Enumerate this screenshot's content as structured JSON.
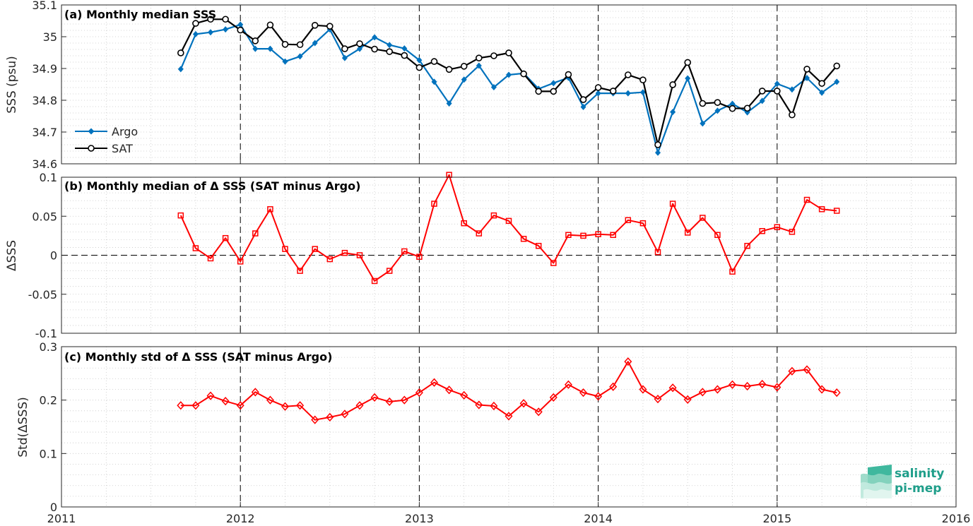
{
  "colors": {
    "argo": "#0072BD",
    "sat": "#000000",
    "delta": "#FF0000",
    "axes": "#262626",
    "grid": "#C8C8C8",
    "logo": "#1F9E8A"
  },
  "icons": {
    "logo": "salinity-pi-mep-logo"
  },
  "logo": {
    "line1": "salinity",
    "line2": "pi-mep"
  },
  "chart_data": [
    {
      "type": "line",
      "title": "(a) Monthly median SSS",
      "xlabel": "",
      "ylabel": "SSS (psu)",
      "xlim": [
        2011,
        2016
      ],
      "ylim": [
        34.6,
        35.1
      ],
      "yticks": [
        "34.6",
        "34.7",
        "34.8",
        "34.9",
        "35",
        "35.1"
      ],
      "xticks": [
        "2011",
        "2012",
        "2013",
        "2014",
        "2015",
        "2016"
      ],
      "grid": true,
      "minor_grid": true,
      "legend": "bottom-left",
      "x": [
        "2011-09",
        "2011-10",
        "2011-11",
        "2011-12",
        "2012-01",
        "2012-02",
        "2012-03",
        "2012-04",
        "2012-05",
        "2012-06",
        "2012-07",
        "2012-08",
        "2012-09",
        "2012-10",
        "2012-11",
        "2012-12",
        "2013-01",
        "2013-02",
        "2013-03",
        "2013-04",
        "2013-05",
        "2013-06",
        "2013-07",
        "2013-08",
        "2013-09",
        "2013-10",
        "2013-11",
        "2013-12",
        "2014-01",
        "2014-02",
        "2014-03",
        "2014-04",
        "2014-05",
        "2014-06",
        "2014-07",
        "2014-08",
        "2014-09",
        "2014-10",
        "2014-11",
        "2014-12",
        "2015-01",
        "2015-02",
        "2015-03",
        "2015-04",
        "2015-05"
      ],
      "series": [
        {
          "name": "Argo",
          "marker": "diamond-filled",
          "values": [
            34.898,
            35.008,
            35.014,
            35.023,
            35.038,
            34.962,
            34.962,
            34.922,
            34.938,
            34.98,
            35.023,
            34.933,
            34.962,
            34.998,
            34.974,
            34.963,
            34.926,
            34.858,
            34.79,
            34.865,
            34.909,
            34.841,
            34.88,
            34.885,
            34.836,
            34.854,
            34.871,
            34.779,
            34.822,
            34.822,
            34.822,
            34.825,
            34.635,
            34.763,
            34.869,
            34.727,
            34.767,
            34.789,
            34.762,
            34.798,
            34.852,
            34.834,
            34.87,
            34.824,
            34.858
          ]
        },
        {
          "name": "SAT",
          "marker": "circle-open",
          "values": [
            34.949,
            35.042,
            35.055,
            35.055,
            35.021,
            34.987,
            35.037,
            34.976,
            34.975,
            35.036,
            35.033,
            34.962,
            34.978,
            34.961,
            34.953,
            34.941,
            34.903,
            34.922,
            34.897,
            34.907,
            34.933,
            34.94,
            34.949,
            34.883,
            34.828,
            34.828,
            34.881,
            34.802,
            34.84,
            34.829,
            34.88,
            34.864,
            34.66,
            34.849,
            34.919,
            34.79,
            34.793,
            34.774,
            34.775,
            34.829,
            34.829,
            34.754,
            34.898,
            34.853,
            34.908
          ]
        }
      ]
    },
    {
      "type": "line",
      "title": "(b) Monthly median of Δ SSS (SAT minus Argo)",
      "xlabel": "",
      "ylabel": "ΔSSS",
      "xlim": [
        2011,
        2016
      ],
      "ylim": [
        -0.1,
        0.1
      ],
      "yticks": [
        "-0.1",
        "-0.05",
        "0",
        "0.05",
        "0.1"
      ],
      "grid": true,
      "minor_grid": true,
      "zero_line": "dashed",
      "x": [
        "2011-09",
        "2011-10",
        "2011-11",
        "2011-12",
        "2012-01",
        "2012-02",
        "2012-03",
        "2012-04",
        "2012-05",
        "2012-06",
        "2012-07",
        "2012-08",
        "2012-09",
        "2012-10",
        "2012-11",
        "2012-12",
        "2013-01",
        "2013-02",
        "2013-03",
        "2013-04",
        "2013-05",
        "2013-06",
        "2013-07",
        "2013-08",
        "2013-09",
        "2013-10",
        "2013-11",
        "2013-12",
        "2014-01",
        "2014-02",
        "2014-03",
        "2014-04",
        "2014-05",
        "2014-06",
        "2014-07",
        "2014-08",
        "2014-09",
        "2014-10",
        "2014-11",
        "2014-12",
        "2015-01",
        "2015-02",
        "2015-03",
        "2015-04",
        "2015-05"
      ],
      "series": [
        {
          "marker": "square-open",
          "values": [
            0.051,
            0.009,
            -0.004,
            0.022,
            -0.008,
            0.028,
            0.059,
            0.008,
            -0.02,
            0.008,
            -0.005,
            0.003,
            0.0,
            -0.033,
            -0.02,
            0.005,
            -0.002,
            0.066,
            0.103,
            0.041,
            0.028,
            0.051,
            0.044,
            0.021,
            0.012,
            -0.01,
            0.026,
            0.025,
            0.027,
            0.026,
            0.045,
            0.041,
            0.004,
            0.066,
            0.029,
            0.048,
            0.026,
            -0.021,
            0.012,
            0.031,
            0.036,
            0.03,
            0.071,
            0.059,
            0.057
          ]
        }
      ]
    },
    {
      "type": "line",
      "title": "(c) Monthly std of Δ SSS (SAT minus Argo)",
      "xlabel": "",
      "ylabel": "Std(ΔSSS)",
      "xlim": [
        2011,
        2016
      ],
      "ylim": [
        0,
        0.3
      ],
      "yticks": [
        "0",
        "0.1",
        "0.2",
        "0.3"
      ],
      "xticks": [
        "2011",
        "2012",
        "2013",
        "2014",
        "2015",
        "2016"
      ],
      "grid": true,
      "minor_grid": true,
      "x": [
        "2011-09",
        "2011-10",
        "2011-11",
        "2011-12",
        "2012-01",
        "2012-02",
        "2012-03",
        "2012-04",
        "2012-05",
        "2012-06",
        "2012-07",
        "2012-08",
        "2012-09",
        "2012-10",
        "2012-11",
        "2012-12",
        "2013-01",
        "2013-02",
        "2013-03",
        "2013-04",
        "2013-05",
        "2013-06",
        "2013-07",
        "2013-08",
        "2013-09",
        "2013-10",
        "2013-11",
        "2013-12",
        "2014-01",
        "2014-02",
        "2014-03",
        "2014-04",
        "2014-05",
        "2014-06",
        "2014-07",
        "2014-08",
        "2014-09",
        "2014-10",
        "2014-11",
        "2014-12",
        "2015-01",
        "2015-02",
        "2015-03",
        "2015-04",
        "2015-05"
      ],
      "series": [
        {
          "marker": "diamond-open",
          "values": [
            0.19,
            0.19,
            0.208,
            0.198,
            0.19,
            0.215,
            0.2,
            0.188,
            0.19,
            0.163,
            0.168,
            0.174,
            0.19,
            0.205,
            0.197,
            0.2,
            0.214,
            0.233,
            0.219,
            0.209,
            0.191,
            0.189,
            0.17,
            0.194,
            0.178,
            0.205,
            0.229,
            0.214,
            0.207,
            0.225,
            0.272,
            0.22,
            0.202,
            0.223,
            0.201,
            0.215,
            0.22,
            0.229,
            0.226,
            0.23,
            0.224,
            0.254,
            0.257,
            0.22,
            0.214
          ]
        }
      ]
    }
  ]
}
